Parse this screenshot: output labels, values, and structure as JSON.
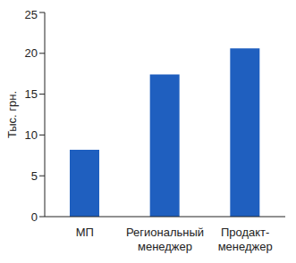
{
  "chart_data": {
    "type": "bar",
    "y_label": "Тыс. грн.",
    "categories": [
      "МП",
      "Региональный\nменеджер",
      "Продакт-\nменеджер"
    ],
    "values": [
      8.2,
      17.4,
      20.6
    ],
    "color": "#1f5fbf",
    "ylim": [
      0,
      25
    ],
    "yticks": [
      0,
      5,
      10,
      15,
      20,
      25
    ],
    "grid": false
  }
}
